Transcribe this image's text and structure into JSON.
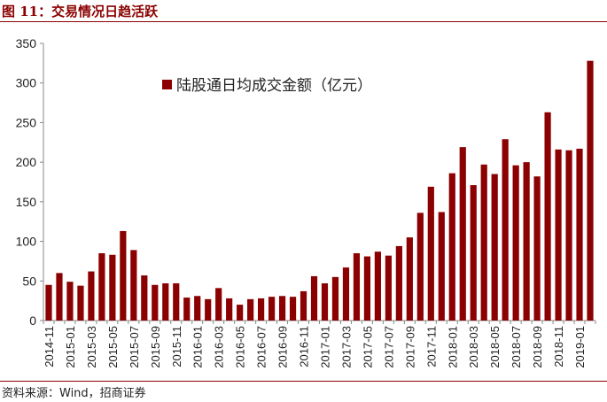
{
  "figure": {
    "title": "图 11：交易情况日趋活跃",
    "source": "资料来源：Wind，招商证券"
  },
  "colors": {
    "bar": "#8b0000",
    "accent": "#8b0000",
    "axis": "#888888",
    "text": "#222222"
  },
  "chart_data": {
    "type": "bar",
    "title": "",
    "xlabel": "",
    "ylabel": "",
    "ylim": [
      0,
      350
    ],
    "yticks": [
      0,
      50,
      100,
      150,
      200,
      250,
      300,
      350
    ],
    "grid": false,
    "legend_position": "top-center",
    "series": [
      {
        "name": "陆股通日均成交金额（亿元）",
        "values": [
          45,
          60,
          49,
          44,
          62,
          85,
          83,
          113,
          89,
          57,
          45,
          47,
          47,
          29,
          31,
          27,
          41,
          28,
          20,
          27,
          28,
          30,
          31,
          30,
          37,
          56,
          47,
          55,
          67,
          85,
          81,
          87,
          82,
          94,
          105,
          136,
          169,
          137,
          186,
          219,
          171,
          197,
          185,
          229,
          196,
          200,
          182,
          263,
          216,
          215,
          217,
          328
        ]
      }
    ],
    "categories": [
      "2014-11",
      "2014-12",
      "2015-01",
      "2015-02",
      "2015-03",
      "2015-04",
      "2015-05",
      "2015-06",
      "2015-07",
      "2015-08",
      "2015-09",
      "2015-10",
      "2015-11",
      "2015-12",
      "2016-01",
      "2016-02",
      "2016-03",
      "2016-04",
      "2016-05",
      "2016-06",
      "2016-07",
      "2016-08",
      "2016-09",
      "2016-10",
      "2016-11",
      "2016-12",
      "2017-01",
      "2017-02",
      "2017-03",
      "2017-04",
      "2017-05",
      "2017-06",
      "2017-07",
      "2017-08",
      "2017-09",
      "2017-10",
      "2017-11",
      "2017-12",
      "2018-01",
      "2018-02",
      "2018-03",
      "2018-04",
      "2018-05",
      "2018-06",
      "2018-07",
      "2018-08",
      "2018-09",
      "2018-10",
      "2018-11",
      "2018-12",
      "2019-01",
      "2019-02"
    ],
    "tick_labels": [
      "2014-11",
      "2015-01",
      "2015-03",
      "2015-05",
      "2015-07",
      "2015-09",
      "2015-11",
      "2016-01",
      "2016-03",
      "2016-05",
      "2016-07",
      "2016-09",
      "2016-11",
      "2017-01",
      "2017-03",
      "2017-05",
      "2017-07",
      "2017-09",
      "2017-11",
      "2018-01",
      "2018-03",
      "2018-05",
      "2018-07",
      "2018-09",
      "2018-11",
      "2019-01"
    ]
  }
}
